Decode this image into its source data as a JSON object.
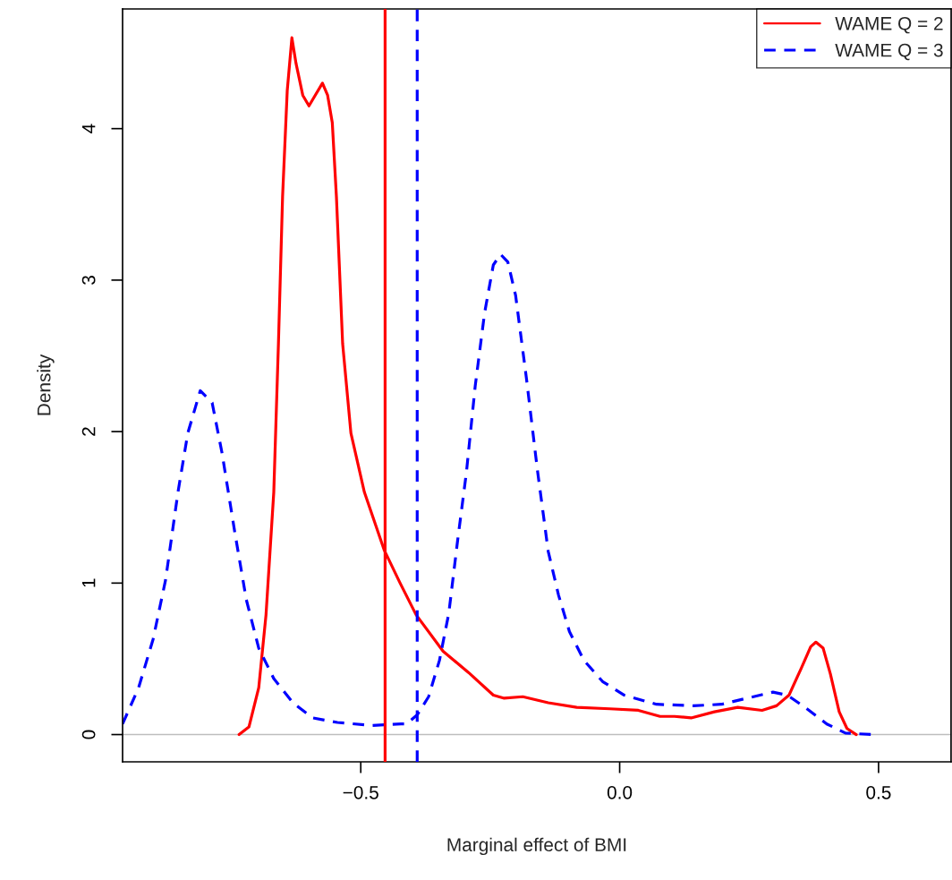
{
  "chart_data": {
    "type": "line",
    "xlabel": "Marginal effect of BMI",
    "ylabel": "Density",
    "xlim": [
      -0.96,
      0.64
    ],
    "ylim": [
      -0.18,
      4.79
    ],
    "xticks": [
      {
        "value": -0.5,
        "label": "−0.5"
      },
      {
        "value": 0.0,
        "label": "0.0"
      },
      {
        "value": 0.5,
        "label": "0.5"
      }
    ],
    "yticks": [
      0,
      1,
      2,
      3,
      4
    ],
    "grid": false,
    "legend": "top right",
    "marker": "none",
    "series": [
      {
        "name": "WAME Q = 2",
        "color": "#ff0000",
        "line_style": "solid",
        "x": [
          -0.735,
          -0.716,
          -0.697,
          -0.683,
          -0.668,
          -0.659,
          -0.651,
          -0.642,
          -0.633,
          -0.625,
          -0.612,
          -0.6,
          -0.588,
          -0.574,
          -0.564,
          -0.555,
          -0.547,
          -0.535,
          -0.519,
          -0.493,
          -0.455,
          -0.424,
          -0.393,
          -0.341,
          -0.292,
          -0.244,
          -0.223,
          -0.187,
          -0.138,
          -0.083,
          -0.019,
          0.036,
          0.078,
          0.106,
          0.138,
          0.183,
          0.228,
          0.275,
          0.303,
          0.327,
          0.351,
          0.369,
          0.379,
          0.393,
          0.407,
          0.424,
          0.439,
          0.457
        ],
        "values": [
          0.0,
          0.05,
          0.31,
          0.79,
          1.6,
          2.58,
          3.55,
          4.25,
          4.6,
          4.43,
          4.22,
          4.15,
          4.22,
          4.3,
          4.22,
          4.04,
          3.55,
          2.58,
          1.99,
          1.6,
          1.22,
          1.0,
          0.79,
          0.55,
          0.41,
          0.26,
          0.24,
          0.25,
          0.21,
          0.18,
          0.17,
          0.16,
          0.12,
          0.12,
          0.11,
          0.15,
          0.18,
          0.16,
          0.19,
          0.26,
          0.44,
          0.58,
          0.61,
          0.57,
          0.4,
          0.15,
          0.04,
          0.0
        ]
      },
      {
        "name": "WAME Q = 3",
        "color": "#0000ff",
        "line_style": "dashed",
        "x": [
          -0.96,
          -0.929,
          -0.901,
          -0.877,
          -0.853,
          -0.834,
          -0.81,
          -0.787,
          -0.768,
          -0.744,
          -0.721,
          -0.697,
          -0.668,
          -0.631,
          -0.593,
          -0.545,
          -0.479,
          -0.422,
          -0.412,
          -0.391,
          -0.369,
          -0.348,
          -0.33,
          -0.313,
          -0.296,
          -0.279,
          -0.261,
          -0.244,
          -0.23,
          -0.216,
          -0.201,
          -0.18,
          -0.159,
          -0.138,
          -0.118,
          -0.097,
          -0.069,
          -0.033,
          0.009,
          0.071,
          0.142,
          0.197,
          0.246,
          0.296,
          0.324,
          0.358,
          0.4,
          0.436,
          0.488
        ],
        "values": [
          0.07,
          0.31,
          0.63,
          1.02,
          1.6,
          1.99,
          2.27,
          2.19,
          1.86,
          1.35,
          0.89,
          0.57,
          0.37,
          0.21,
          0.11,
          0.08,
          0.06,
          0.07,
          0.07,
          0.13,
          0.25,
          0.49,
          0.8,
          1.28,
          1.73,
          2.3,
          2.78,
          3.1,
          3.17,
          3.12,
          2.9,
          2.35,
          1.75,
          1.21,
          0.92,
          0.68,
          0.49,
          0.35,
          0.26,
          0.2,
          0.19,
          0.2,
          0.24,
          0.28,
          0.26,
          0.18,
          0.07,
          0.01,
          0.0
        ]
      }
    ],
    "ref_lines": [
      {
        "axis": "x",
        "value": -0.453,
        "color": "#ff0000",
        "line_style": "solid"
      },
      {
        "axis": "x",
        "value": -0.391,
        "color": "#0000ff",
        "line_style": "dashed"
      },
      {
        "axis": "y",
        "value": 0,
        "color": "#bebebe",
        "line_style": "solid"
      }
    ]
  }
}
